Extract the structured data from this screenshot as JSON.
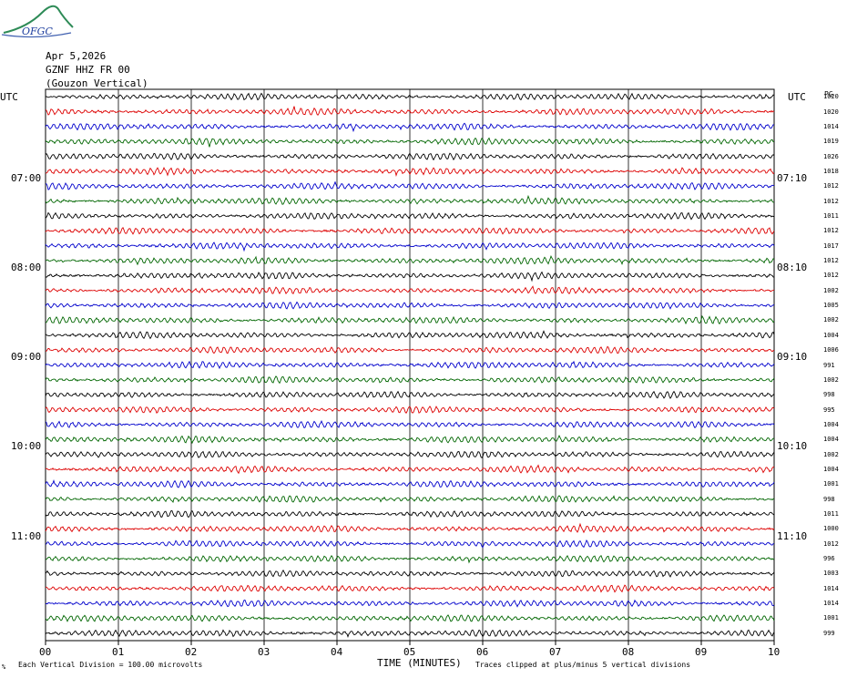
{
  "logo": {
    "text": "OFGC"
  },
  "header": {
    "date": "Apr 5,2026",
    "station": "GZNF HHZ FR 00",
    "location": "(Gouzon Vertical)"
  },
  "left_axis_title": "UTC",
  "right_axis_title": "UTC",
  "right_column_title": "PG",
  "colors": {
    "black": "#000000",
    "red": "#dd0000",
    "blue": "#0000cc",
    "green": "#006600",
    "grid": "#000000"
  },
  "chart_data": {
    "type": "line",
    "title": "",
    "xlabel": "TIME (MINUTES)",
    "x_ticks": [
      "00",
      "01",
      "02",
      "03",
      "04",
      "05",
      "06",
      "07",
      "08",
      "09",
      "10"
    ],
    "xlim": [
      0,
      10
    ],
    "left_time_labels": [
      {
        "row": 6,
        "label": "07:00"
      },
      {
        "row": 12,
        "label": "08:00"
      },
      {
        "row": 18,
        "label": "09:00"
      },
      {
        "row": 24,
        "label": "10:00"
      },
      {
        "row": 30,
        "label": "11:00"
      }
    ],
    "right_time_labels": [
      {
        "row": 6,
        "label": "07:10"
      },
      {
        "row": 12,
        "label": "08:10"
      },
      {
        "row": 18,
        "label": "09:10"
      },
      {
        "row": 24,
        "label": "10:10"
      },
      {
        "row": 30,
        "label": "11:10"
      }
    ],
    "trace_colors": [
      "black",
      "red",
      "blue",
      "green"
    ],
    "trace_values": [
      "1020",
      "1020",
      "1014",
      "1019",
      "1026",
      "1018",
      "1012",
      "1012",
      "1011",
      "1012",
      "1017",
      "1012",
      "1012",
      "1002",
      "1005",
      "1002",
      "1004",
      "1006",
      "991",
      "1002",
      "998",
      "995",
      "1004",
      "1004",
      "1002",
      "1004",
      "1001",
      "998",
      "1011",
      "1000",
      "1012",
      "996",
      "1003",
      "1014",
      "1014",
      "1001",
      "999"
    ]
  },
  "footer": {
    "scale_note": "Each Vertical Division =  100.00 microvolts",
    "clip_note": "Traces clipped at plus/minus 5 vertical divisions",
    "corner_mark": "%"
  }
}
